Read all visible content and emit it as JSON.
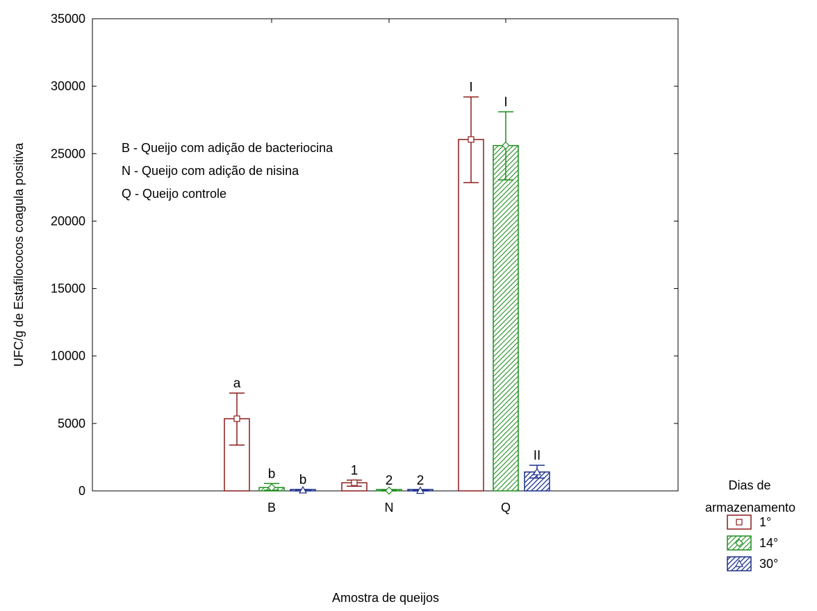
{
  "chart_data": {
    "type": "bar",
    "title": "",
    "xlabel": "Amostra de queijos",
    "ylabel": "UFC/g de Estafilococos coagula positiva",
    "ylim": [
      0,
      35000
    ],
    "yticks": [
      0,
      5000,
      10000,
      15000,
      20000,
      25000,
      30000,
      35000
    ],
    "categories": [
      "B",
      "N",
      "Q"
    ],
    "series": [
      {
        "name": "1°",
        "color": "#8b1a1a",
        "pattern": "none",
        "marker": "square",
        "values": [
          5350,
          600,
          26050
        ],
        "err_low": [
          3400,
          350,
          22850
        ],
        "err_high": [
          7250,
          800,
          29200
        ],
        "labels": [
          "a",
          "1",
          "I"
        ]
      },
      {
        "name": "14°",
        "color": "#1e8c1e",
        "pattern": "diagonal",
        "marker": "diamond",
        "values": [
          250,
          20,
          25600
        ],
        "err_low": [
          50,
          0,
          23050
        ],
        "err_high": [
          550,
          40,
          28100
        ],
        "labels": [
          "b",
          "2",
          "I"
        ]
      },
      {
        "name": "30°",
        "color": "#1c2f8a",
        "pattern": "crosshatch",
        "marker": "triangle",
        "values": [
          50,
          20,
          1400
        ],
        "err_low": [
          0,
          0,
          950
        ],
        "err_high": [
          100,
          50,
          1900
        ],
        "labels": [
          "b",
          "2",
          "II"
        ]
      }
    ],
    "legend": {
      "title_line1": "Dias de",
      "title_line2": "armazenamento",
      "placement": "right-bottom"
    },
    "annotations": [
      "B - Queijo com adição de bacteriocina",
      "N - Queijo com adição de nisina",
      "Q - Queijo controle"
    ],
    "grid": false
  }
}
